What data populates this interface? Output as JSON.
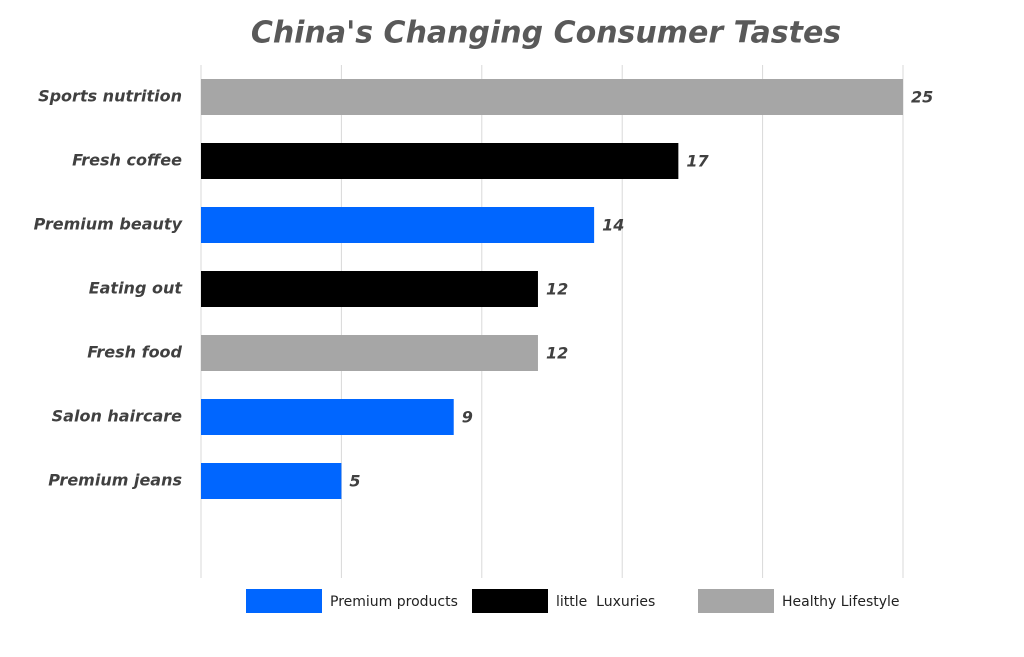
{
  "chart_data": {
    "type": "hbar",
    "title": "China's Changing Consumer Tastes",
    "categories": [
      "Sports nutrition",
      "Fresh coffee",
      "Premium beauty",
      "Eating out",
      "Fresh food",
      "Salon haircare",
      "Premium jeans"
    ],
    "series": [
      {
        "name": "Premium products",
        "color": "#0066ff",
        "values": [
          null,
          null,
          14,
          null,
          null,
          9,
          5
        ]
      },
      {
        "name": "little  Luxuries",
        "color": "#000000",
        "values": [
          null,
          17,
          null,
          12,
          null,
          null,
          null
        ]
      },
      {
        "name": "Healthy Lifestyle",
        "color": "#a6a6a6",
        "values": [
          25,
          null,
          null,
          null,
          12,
          null,
          null
        ]
      }
    ],
    "xlim": [
      0,
      25
    ],
    "xticks": [
      0,
      5,
      10,
      15,
      20,
      25
    ],
    "grid": true,
    "legend": "bottom"
  }
}
